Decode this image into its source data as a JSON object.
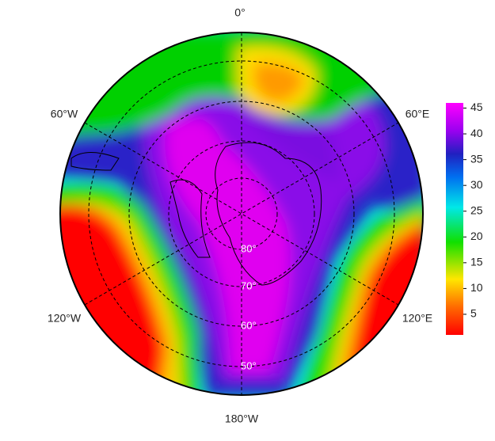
{
  "map": {
    "longitude_labels": [
      "0°",
      "60°E",
      "120°E",
      "180°W",
      "120°W",
      "60°W"
    ],
    "latitude_labels": [
      "80°",
      "70°",
      "60°",
      "50°"
    ],
    "colorbar": {
      "range": [
        1,
        46
      ],
      "ticks": [
        5,
        10,
        15,
        20,
        25,
        30,
        35,
        40,
        45
      ]
    }
  }
}
